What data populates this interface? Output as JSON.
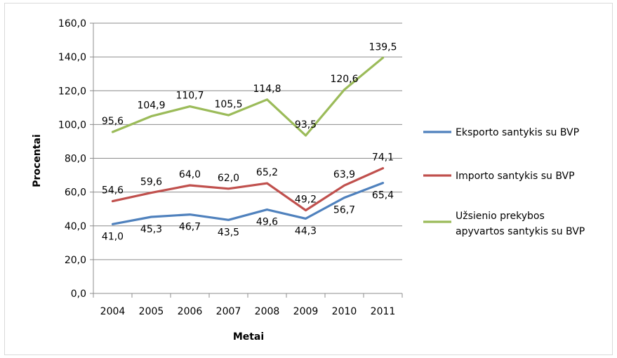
{
  "chart_data": {
    "type": "line",
    "categories": [
      "2004",
      "2005",
      "2006",
      "2007",
      "2008",
      "2009",
      "2010",
      "2011"
    ],
    "xlabel": "Metai",
    "ylabel": "Procentai",
    "ylim": [
      0,
      160
    ],
    "ytick_labels": [
      "0,0",
      "20,0",
      "40,0",
      "60,0",
      "80,0",
      "100,0",
      "120,0",
      "140,0",
      "160,0"
    ],
    "grid": "horizontal",
    "legend_position": "right",
    "series": [
      {
        "name": "Eksporto santykis su BVP",
        "legend_lines": [
          "Eksporto santykis su BVP"
        ],
        "color": "#4f81bd",
        "values": [
          41.0,
          45.3,
          46.7,
          43.5,
          49.6,
          44.3,
          56.7,
          65.4
        ],
        "labels": [
          "41,0",
          "45,3",
          "46,7",
          "43,5",
          "49,6",
          "44,3",
          "56,7",
          "65,4"
        ]
      },
      {
        "name": "Importo santykis su BVP",
        "legend_lines": [
          "Importo santykis su BVP"
        ],
        "color": "#c0504d",
        "values": [
          54.6,
          59.6,
          64.0,
          62.0,
          65.2,
          49.2,
          63.9,
          74.1
        ],
        "labels": [
          "54,6",
          "59,6",
          "64,0",
          "62,0",
          "65,2",
          "49,2",
          "63,9",
          "74,1"
        ]
      },
      {
        "name": "Užsienio prekybos apyvartos santykis su BVP",
        "legend_lines": [
          "Užsienio prekybos",
          "apyvartos santykis su BVP"
        ],
        "color": "#9bbb59",
        "values": [
          95.6,
          104.9,
          110.7,
          105.5,
          114.8,
          93.5,
          120.6,
          139.5
        ],
        "labels": [
          "95,6",
          "104,9",
          "110,7",
          "105,5",
          "114,8",
          "93,5",
          "120,6",
          "139,5"
        ]
      }
    ]
  }
}
